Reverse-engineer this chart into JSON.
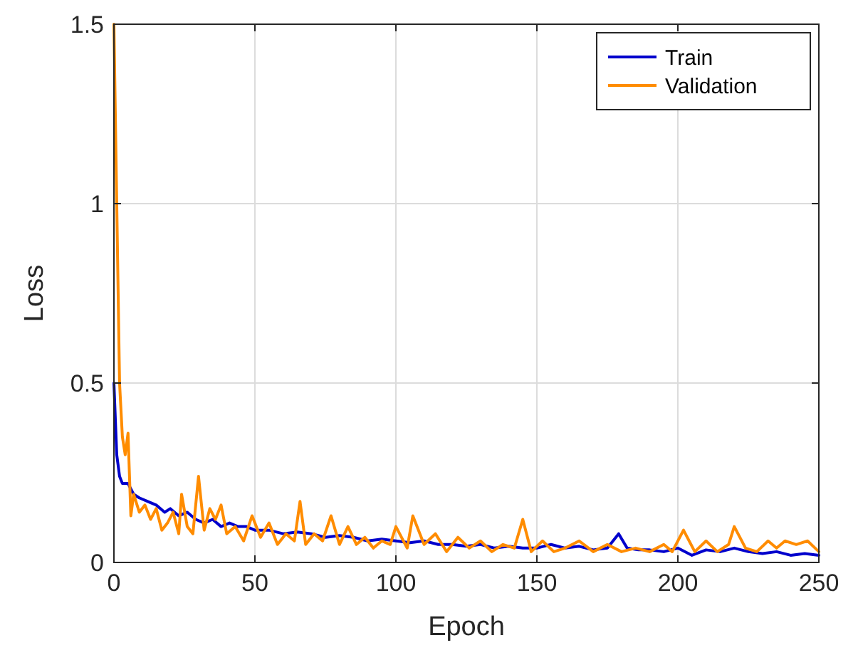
{
  "chart_data": {
    "type": "line",
    "xlabel": "Epoch",
    "ylabel": "Loss",
    "xlim": [
      0,
      250
    ],
    "xticks": [
      0,
      50,
      100,
      150,
      200,
      250
    ],
    "ylim": [
      0,
      1.5
    ],
    "yticks": [
      0,
      0.5,
      1,
      1.5
    ],
    "grid": true,
    "legend": "top right",
    "line_style": "solid",
    "marker": "none",
    "series": [
      {
        "name": "Train",
        "color": "#0000cc",
        "x": [
          0,
          1,
          2,
          3,
          5,
          7,
          9,
          12,
          15,
          18,
          20,
          23,
          26,
          29,
          32,
          35,
          38,
          41,
          44,
          47,
          50,
          55,
          60,
          65,
          70,
          75,
          80,
          85,
          90,
          95,
          100,
          105,
          110,
          115,
          120,
          125,
          130,
          135,
          140,
          145,
          150,
          155,
          160,
          165,
          170,
          175,
          179,
          182,
          186,
          190,
          195,
          200,
          205,
          210,
          215,
          220,
          225,
          230,
          235,
          240,
          245,
          250
        ],
        "values": [
          0.5,
          0.3,
          0.24,
          0.22,
          0.22,
          0.19,
          0.18,
          0.17,
          0.16,
          0.14,
          0.15,
          0.13,
          0.14,
          0.12,
          0.11,
          0.12,
          0.1,
          0.11,
          0.1,
          0.1,
          0.09,
          0.09,
          0.08,
          0.085,
          0.08,
          0.07,
          0.075,
          0.07,
          0.06,
          0.065,
          0.06,
          0.055,
          0.06,
          0.05,
          0.05,
          0.045,
          0.05,
          0.04,
          0.045,
          0.04,
          0.04,
          0.05,
          0.04,
          0.045,
          0.035,
          0.04,
          0.08,
          0.04,
          0.035,
          0.035,
          0.03,
          0.04,
          0.02,
          0.035,
          0.03,
          0.04,
          0.03,
          0.025,
          0.03,
          0.02,
          0.025,
          0.02
        ]
      },
      {
        "name": "Validation",
        "color": "#ff8c00",
        "x": [
          0,
          1,
          2,
          3,
          4,
          5,
          6,
          7,
          9,
          11,
          13,
          15,
          17,
          19,
          21,
          23,
          24,
          26,
          28,
          30,
          32,
          34,
          36,
          38,
          40,
          43,
          46,
          49,
          52,
          55,
          58,
          61,
          64,
          66,
          68,
          71,
          74,
          77,
          80,
          83,
          86,
          89,
          92,
          95,
          98,
          100,
          104,
          106,
          110,
          114,
          118,
          122,
          126,
          130,
          134,
          138,
          142,
          145,
          148,
          152,
          156,
          160,
          165,
          170,
          175,
          180,
          185,
          190,
          195,
          198,
          202,
          206,
          210,
          214,
          218,
          220,
          224,
          228,
          232,
          235,
          238,
          242,
          246,
          250
        ],
        "values": [
          1.5,
          1.0,
          0.5,
          0.35,
          0.3,
          0.36,
          0.13,
          0.19,
          0.14,
          0.16,
          0.12,
          0.15,
          0.09,
          0.11,
          0.14,
          0.08,
          0.19,
          0.1,
          0.08,
          0.24,
          0.09,
          0.15,
          0.12,
          0.16,
          0.08,
          0.1,
          0.06,
          0.13,
          0.07,
          0.11,
          0.05,
          0.08,
          0.06,
          0.17,
          0.05,
          0.08,
          0.06,
          0.13,
          0.05,
          0.1,
          0.05,
          0.07,
          0.04,
          0.06,
          0.05,
          0.1,
          0.04,
          0.13,
          0.05,
          0.08,
          0.03,
          0.07,
          0.04,
          0.06,
          0.03,
          0.05,
          0.04,
          0.12,
          0.03,
          0.06,
          0.03,
          0.04,
          0.06,
          0.03,
          0.05,
          0.03,
          0.04,
          0.03,
          0.05,
          0.03,
          0.09,
          0.03,
          0.06,
          0.03,
          0.05,
          0.1,
          0.04,
          0.03,
          0.06,
          0.04,
          0.06,
          0.05,
          0.06,
          0.03
        ]
      }
    ]
  }
}
